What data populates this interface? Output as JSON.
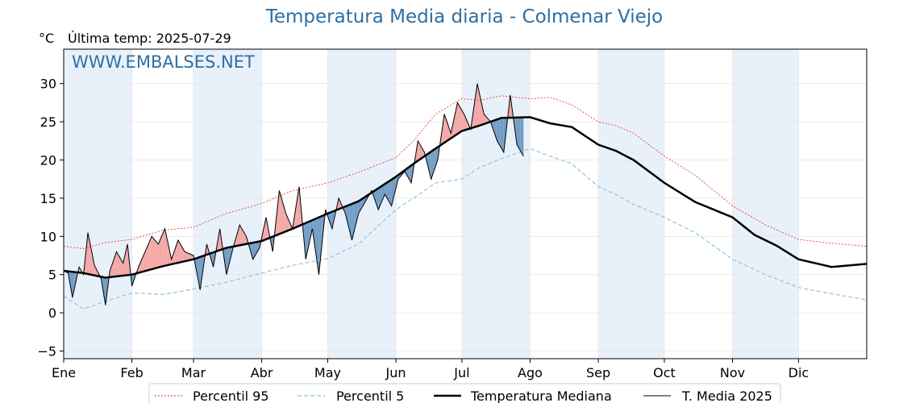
{
  "chart_data": {
    "type": "line",
    "title": "Temperatura Media diaria - Colmenar Viejo",
    "subtitle": "Última temp: 2025-07-29",
    "ylabel_unit": "°C",
    "watermark": "WWW.EMBALSES.NET",
    "x_ticks": [
      "Ene",
      "Feb",
      "Mar",
      "Abr",
      "May",
      "Jun",
      "Jul",
      "Ago",
      "Sep",
      "Oct",
      "Nov",
      "Dic"
    ],
    "y_ticks": [
      "−5",
      "0",
      "5",
      "10",
      "15",
      "20",
      "25",
      "30"
    ],
    "ylim": [
      -6,
      34.5
    ],
    "xlim_days": [
      1,
      366
    ],
    "grid": true,
    "legend_placement": "bottom",
    "colors": {
      "p95": "#e8281e",
      "p5": "#8ec6d8",
      "median": "#000000",
      "current": "#000000",
      "above_fill": "#f4a5a5",
      "below_fill": "#6f9bc4",
      "band": "#e8f1fa"
    },
    "series": [
      {
        "name": "Percentil 95",
        "x": [
          1,
          10,
          20,
          32,
          46,
          60,
          75,
          91,
          105,
          121,
          135,
          152,
          160,
          170,
          182,
          190,
          200,
          213,
          222,
          232,
          244,
          252,
          260,
          274,
          288,
          305,
          320,
          335,
          350,
          366
        ],
        "y": [
          8.7,
          8.4,
          9.2,
          9.6,
          10.8,
          11.2,
          13.0,
          14.3,
          16.0,
          17.0,
          18.4,
          20.3,
          22.5,
          26.0,
          28.0,
          27.8,
          28.4,
          28.0,
          28.2,
          27.2,
          25.0,
          24.5,
          23.5,
          20.5,
          18.0,
          14.0,
          11.5,
          9.6,
          9.1,
          8.7
        ]
      },
      {
        "name": "Percentil 5",
        "x": [
          1,
          10,
          20,
          32,
          46,
          60,
          75,
          91,
          105,
          121,
          135,
          152,
          160,
          170,
          182,
          190,
          200,
          213,
          222,
          232,
          244,
          252,
          260,
          274,
          288,
          305,
          320,
          335,
          350,
          366
        ],
        "y": [
          2.2,
          0.5,
          1.5,
          2.6,
          2.4,
          3.1,
          4.0,
          5.2,
          6.2,
          7.1,
          9.0,
          13.5,
          15.0,
          17.0,
          17.5,
          19.0,
          20.2,
          21.5,
          20.5,
          19.5,
          16.5,
          15.5,
          14.2,
          12.5,
          10.5,
          7.0,
          5.0,
          3.3,
          2.5,
          1.7
        ]
      },
      {
        "name": "Temperatura Mediana",
        "x": [
          1,
          10,
          20,
          32,
          46,
          60,
          75,
          91,
          105,
          121,
          135,
          152,
          160,
          170,
          182,
          190,
          200,
          213,
          222,
          232,
          244,
          252,
          260,
          274,
          288,
          305,
          315,
          325,
          335,
          350,
          366
        ],
        "y": [
          5.5,
          5.2,
          4.6,
          5.0,
          6.1,
          7.0,
          8.5,
          9.4,
          11.0,
          13.0,
          14.6,
          17.8,
          19.5,
          21.5,
          23.8,
          24.5,
          25.5,
          25.6,
          24.8,
          24.3,
          22.0,
          21.2,
          20.0,
          17.0,
          14.5,
          12.5,
          10.2,
          8.8,
          7.0,
          6.0,
          6.4
        ]
      },
      {
        "name": "T. Media 2025",
        "x": [
          1,
          3,
          5,
          8,
          10,
          12,
          15,
          18,
          20,
          22,
          25,
          28,
          30,
          32,
          35,
          38,
          41,
          44,
          47,
          50,
          53,
          56,
          60,
          63,
          66,
          69,
          72,
          75,
          78,
          81,
          84,
          87,
          90,
          93,
          96,
          99,
          102,
          105,
          108,
          111,
          114,
          117,
          120,
          123,
          126,
          129,
          132,
          135,
          138,
          141,
          144,
          147,
          150,
          153,
          156,
          159,
          162,
          165,
          168,
          171,
          174,
          177,
          180,
          183,
          186,
          189,
          192,
          195,
          198,
          201,
          204,
          207,
          210
        ],
        "y": [
          5.5,
          5.2,
          2.0,
          6.0,
          5.0,
          10.5,
          6.2,
          4.5,
          1.0,
          5.5,
          8.0,
          6.5,
          9.0,
          3.5,
          6.0,
          8.0,
          10.0,
          9.0,
          11.0,
          7.0,
          9.5,
          8.0,
          7.5,
          3.0,
          9.0,
          6.0,
          11.0,
          5.0,
          8.5,
          11.5,
          10.0,
          7.0,
          8.5,
          12.5,
          8.0,
          16.0,
          13.0,
          11.0,
          16.5,
          7.0,
          11.0,
          5.0,
          13.5,
          11.0,
          15.0,
          13.0,
          9.5,
          13.0,
          14.5,
          16.0,
          13.5,
          15.5,
          14.0,
          17.5,
          18.5,
          17.0,
          22.5,
          21.0,
          17.5,
          20.0,
          26.0,
          23.5,
          27.5,
          26.0,
          24.0,
          30.0,
          26.0,
          25.0,
          22.5,
          21.0,
          28.5,
          22.0,
          20.5
        ]
      }
    ]
  }
}
